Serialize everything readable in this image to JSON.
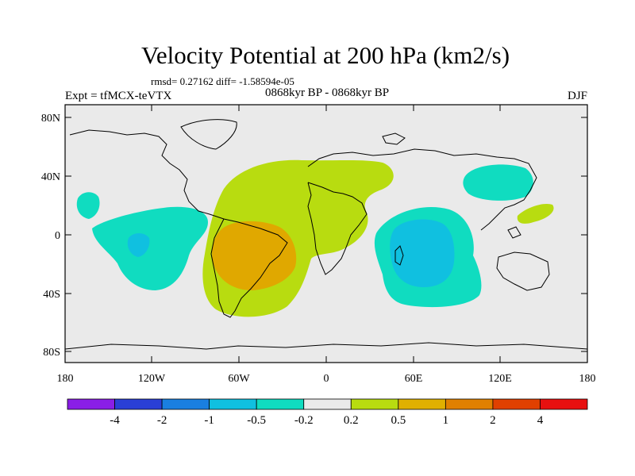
{
  "title": "Velocity Potential at 200 hPa (km2/s)",
  "stats": "rmsd= 0.27162 diff= -1.58594e-05",
  "left_label": "Expt = tfMCX-teVTX",
  "center_label": "0868kyr BP - 0868kyr BP",
  "right_label": "DJF",
  "y_ticks": [
    "80N",
    "40N",
    "0",
    "40S",
    "80S"
  ],
  "x_ticks": [
    "180",
    "120W",
    "60W",
    "0",
    "60E",
    "120E",
    "180"
  ],
  "colorbar": {
    "labels": [
      "-4",
      "-2",
      "-1",
      "-0.5",
      "-0.2",
      "0.2",
      "0.5",
      "1",
      "2",
      "4"
    ],
    "colors": [
      "#8a1ee6",
      "#2a3fd6",
      "#1a7fe0",
      "#10c0e0",
      "#10dcc0",
      "#eaeaea",
      "#b8dc10",
      "#e0b000",
      "#e08000",
      "#e04000",
      "#e81010"
    ]
  },
  "colors": {
    "background": "#eaeaea",
    "pos_light": "#b8dc10",
    "pos_mid": "#e0a800",
    "neg_light": "#10dcc0",
    "neg_mid": "#10c0e0"
  }
}
